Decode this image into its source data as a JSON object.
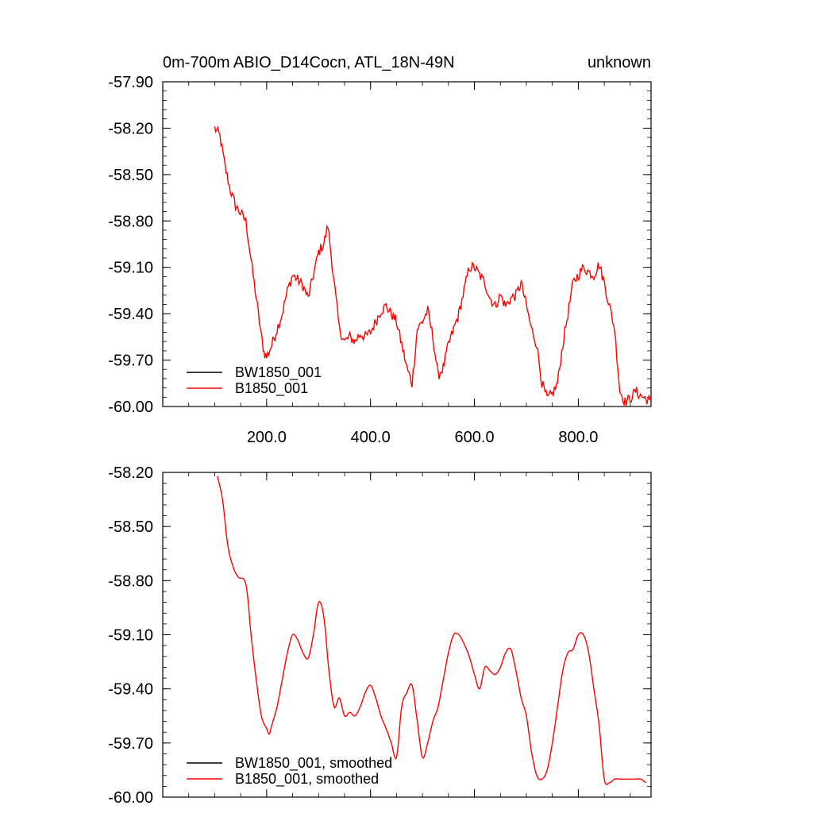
{
  "chart_data": [
    {
      "type": "line",
      "title": "0m-700m ABIO_D14Cocn, ATL_18N-49N",
      "right_title": "unknown",
      "xlabel": "",
      "ylabel": "",
      "xlim": [
        0,
        940
      ],
      "ylim": [
        -60.0,
        -57.9
      ],
      "y_ticks": [
        -60.0,
        -59.7,
        -59.4,
        -59.1,
        -58.8,
        -58.5,
        -58.2,
        -57.9
      ],
      "y_tick_labels": [
        "-60.00",
        "-59.70",
        "-59.40",
        "-59.10",
        "-58.80",
        "-58.50",
        "-58.20",
        "-57.90"
      ],
      "x_ticks": [
        200,
        400,
        600,
        800
      ],
      "x_tick_labels": [
        "200.0",
        "400.0",
        "600.0",
        "800.0"
      ],
      "grid": false,
      "legend_position": "bottom-left",
      "noisy": true,
      "series": [
        {
          "name": "BW1850_001",
          "color": "#000000",
          "x": [],
          "y": []
        },
        {
          "name": "B1850_001",
          "color": "#ff0000",
          "x": [
            100,
            110,
            120,
            130,
            140,
            150,
            160,
            170,
            180,
            190,
            195,
            200,
            210,
            220,
            230,
            240,
            250,
            260,
            270,
            280,
            290,
            300,
            310,
            318,
            330,
            340,
            350,
            360,
            370,
            380,
            390,
            400,
            410,
            420,
            430,
            440,
            450,
            460,
            470,
            480,
            490,
            500,
            510,
            520,
            530,
            540,
            550,
            560,
            570,
            580,
            590,
            600,
            610,
            620,
            630,
            640,
            650,
            660,
            670,
            680,
            690,
            700,
            710,
            720,
            730,
            740,
            750,
            760,
            770,
            780,
            790,
            800,
            810,
            820,
            830,
            840,
            850,
            860,
            870,
            880,
            890,
            900,
            910,
            920,
            930,
            938
          ],
          "y": [
            -58.2,
            -58.25,
            -58.45,
            -58.6,
            -58.7,
            -58.75,
            -58.8,
            -59.05,
            -59.3,
            -59.55,
            -59.65,
            -59.68,
            -59.6,
            -59.5,
            -59.4,
            -59.25,
            -59.15,
            -59.18,
            -59.22,
            -59.3,
            -59.15,
            -59.0,
            -58.95,
            -58.83,
            -59.2,
            -59.5,
            -59.58,
            -59.55,
            -59.58,
            -59.53,
            -59.55,
            -59.52,
            -59.45,
            -59.38,
            -59.35,
            -59.4,
            -59.45,
            -59.6,
            -59.75,
            -59.85,
            -59.5,
            -59.45,
            -59.38,
            -59.55,
            -59.8,
            -59.75,
            -59.6,
            -59.5,
            -59.4,
            -59.25,
            -59.1,
            -59.1,
            -59.15,
            -59.2,
            -59.3,
            -59.35,
            -59.28,
            -59.35,
            -59.3,
            -59.28,
            -59.2,
            -59.35,
            -59.5,
            -59.6,
            -59.85,
            -59.95,
            -59.92,
            -59.85,
            -59.6,
            -59.4,
            -59.2,
            -59.15,
            -59.1,
            -59.13,
            -59.15,
            -59.08,
            -59.2,
            -59.35,
            -59.5,
            -59.9,
            -59.97,
            -59.95,
            -59.9,
            -59.93,
            -59.95,
            -59.96
          ]
        }
      ]
    },
    {
      "type": "line",
      "title": "",
      "xlabel": "",
      "ylabel": "",
      "xlim": [
        0,
        940
      ],
      "ylim": [
        -60.0,
        -58.2
      ],
      "y_ticks": [
        -60.0,
        -59.7,
        -59.4,
        -59.1,
        -58.8,
        -58.5,
        -58.2
      ],
      "y_tick_labels": [
        "-60.00",
        "-59.70",
        "-59.40",
        "-59.10",
        "-58.80",
        "-58.50",
        "-58.20"
      ],
      "x_ticks": [
        200,
        400,
        600,
        800
      ],
      "x_tick_labels": [],
      "grid": false,
      "legend_position": "bottom-left",
      "noisy": false,
      "series": [
        {
          "name": "BW1850_001, smoothed",
          "color": "#000000",
          "x": [],
          "y": []
        },
        {
          "name": "B1850_001, smoothed",
          "color": "#ff0000",
          "x": [
            105,
            115,
            125,
            135,
            145,
            160,
            170,
            180,
            190,
            200,
            205,
            210,
            220,
            230,
            240,
            250,
            260,
            270,
            280,
            290,
            300,
            310,
            320,
            330,
            340,
            350,
            360,
            370,
            380,
            390,
            400,
            410,
            420,
            430,
            440,
            450,
            460,
            470,
            480,
            490,
            500,
            510,
            520,
            530,
            540,
            550,
            560,
            570,
            580,
            590,
            600,
            610,
            620,
            630,
            640,
            650,
            660,
            670,
            680,
            690,
            700,
            710,
            720,
            730,
            740,
            750,
            760,
            770,
            780,
            790,
            800,
            810,
            820,
            830,
            840,
            850,
            860,
            870,
            880,
            890,
            900,
            910,
            920,
            930
          ],
          "y": [
            -58.22,
            -58.35,
            -58.6,
            -58.72,
            -58.78,
            -58.82,
            -59.1,
            -59.35,
            -59.55,
            -59.62,
            -59.65,
            -59.6,
            -59.5,
            -59.35,
            -59.2,
            -59.1,
            -59.13,
            -59.2,
            -59.23,
            -59.1,
            -58.92,
            -59.0,
            -59.3,
            -59.5,
            -59.45,
            -59.55,
            -59.53,
            -59.55,
            -59.5,
            -59.42,
            -59.38,
            -59.45,
            -59.55,
            -59.62,
            -59.7,
            -59.78,
            -59.5,
            -59.42,
            -59.38,
            -59.58,
            -59.78,
            -59.7,
            -59.58,
            -59.5,
            -59.35,
            -59.2,
            -59.1,
            -59.1,
            -59.15,
            -59.22,
            -59.32,
            -59.4,
            -59.28,
            -59.3,
            -59.32,
            -59.28,
            -59.2,
            -59.18,
            -59.3,
            -59.45,
            -59.55,
            -59.75,
            -59.88,
            -59.9,
            -59.85,
            -59.7,
            -59.5,
            -59.3,
            -59.2,
            -59.18,
            -59.1,
            -59.1,
            -59.2,
            -59.4,
            -59.6,
            -59.9,
            -59.92,
            -59.9,
            -59.9,
            -59.9,
            -59.9,
            -59.9,
            -59.9,
            -59.92
          ]
        }
      ]
    }
  ]
}
